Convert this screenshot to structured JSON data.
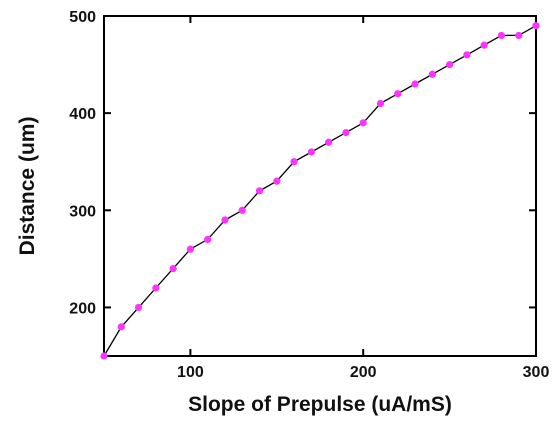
{
  "chart_data": {
    "type": "line",
    "title": "",
    "xlabel": "Slope of Prepulse (uA/mS)",
    "ylabel": "Distance (um)",
    "xlim": [
      50,
      300
    ],
    "ylim": [
      150,
      500
    ],
    "xticks": [
      100,
      200,
      300
    ],
    "yticks": [
      200,
      300,
      400,
      500
    ],
    "grid": false,
    "legend": "none",
    "line_color": "#000000",
    "marker_color": "#ff33ff",
    "series": [
      {
        "x": [
          50,
          60,
          70,
          80,
          90,
          100,
          110,
          120,
          130,
          140,
          150,
          160,
          170,
          180,
          190,
          200,
          210,
          220,
          230,
          240,
          250,
          260,
          270,
          280,
          290,
          300
        ],
        "y": [
          150,
          180,
          200,
          220,
          240,
          260,
          270,
          290,
          300,
          320,
          330,
          350,
          360,
          370,
          380,
          390,
          410,
          420,
          430,
          440,
          450,
          460,
          470,
          480,
          480,
          490
        ]
      }
    ]
  }
}
